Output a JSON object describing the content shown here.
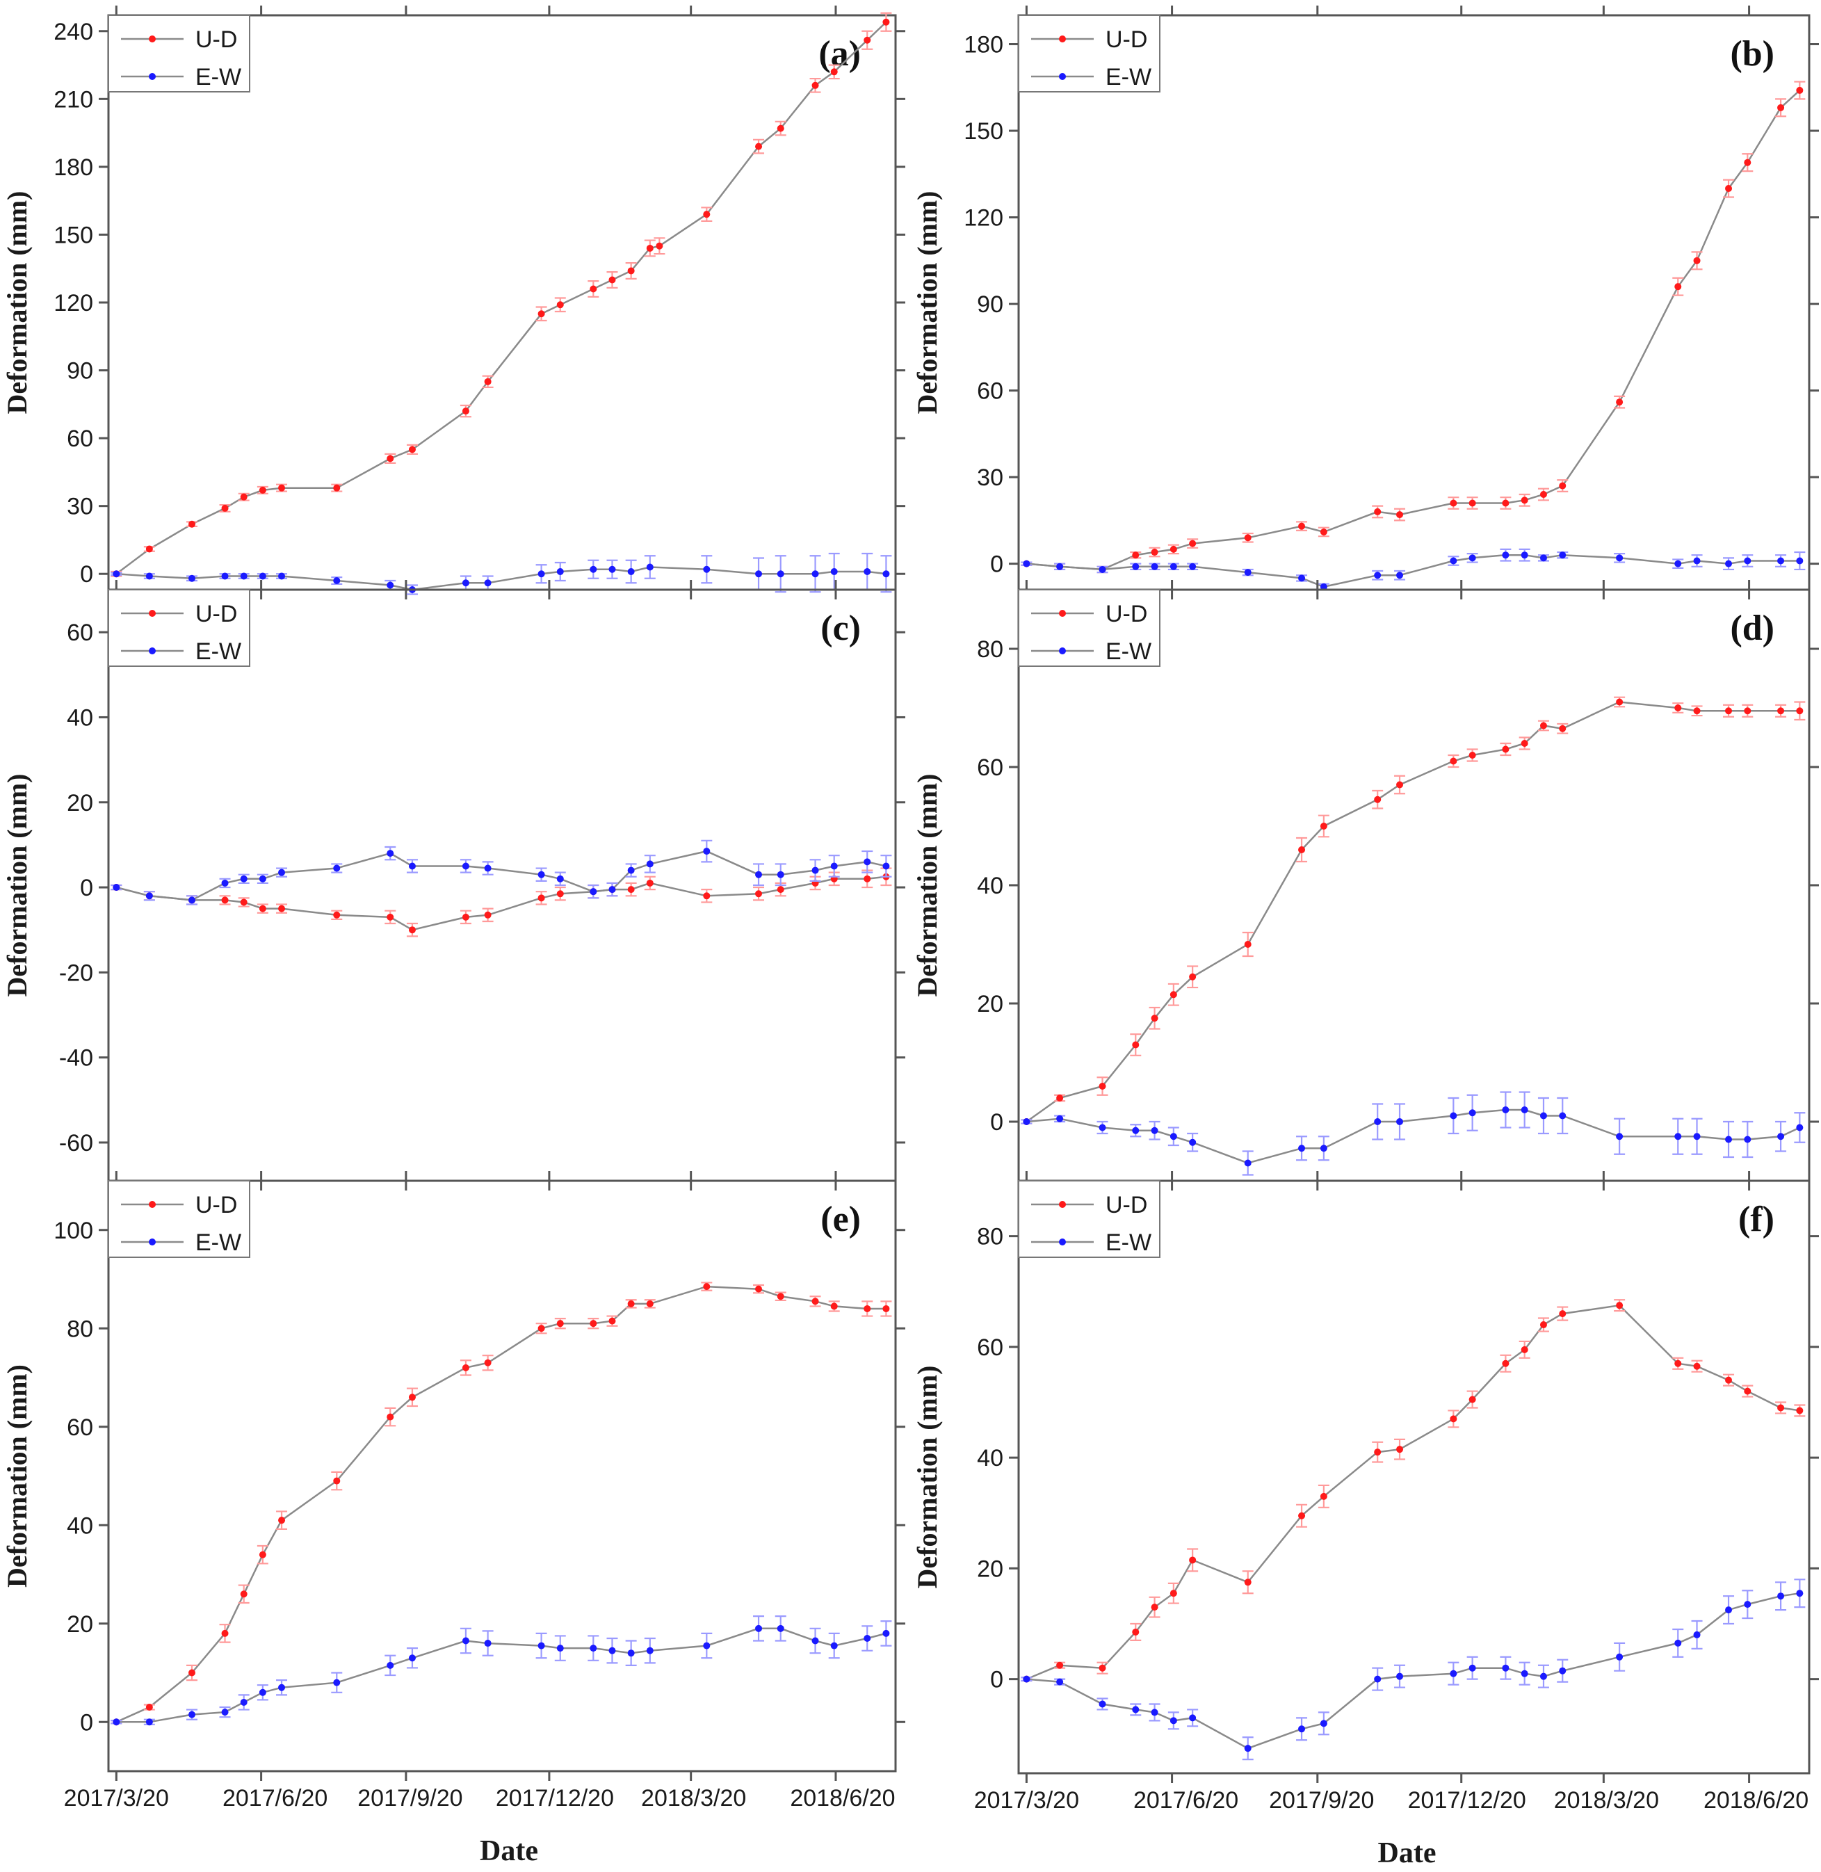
{
  "figure": {
    "x_label": "Date",
    "y_label": "Deformation (mm)",
    "x_tick_labels": [
      "2017/3/20",
      "2017/6/20",
      "2017/9/20",
      "2017/12/20",
      "2018/3/20",
      "2018/6/20"
    ],
    "legend": [
      "U-D",
      "E-W"
    ],
    "colors": {
      "U-D": "#ff1a1a",
      "E-W": "#1a1aff",
      "line": "#8a8a8a",
      "error_U-D": "#ff9a9a",
      "error_E-W": "#9a9aff"
    }
  },
  "chart_data": [
    {
      "panel": "(a)",
      "type": "line",
      "title": "(a)",
      "xlabel": "",
      "ylabel": "Deformation (mm)",
      "ylim": [
        -7,
        247
      ],
      "yticks": [
        0,
        30,
        60,
        90,
        120,
        150,
        180,
        210,
        240
      ],
      "xlim": [
        -5,
        495
      ],
      "xticks": [
        0,
        92,
        184,
        275,
        365,
        457
      ],
      "legend_position": "top-left",
      "series": [
        {
          "name": "U-D",
          "x": [
            0,
            21,
            48,
            69,
            81,
            93,
            105,
            140,
            174,
            188,
            222,
            236,
            270,
            282,
            303,
            315,
            327,
            339,
            345,
            375,
            408,
            422,
            444,
            456,
            477,
            489
          ],
          "y": [
            0,
            11,
            22,
            29,
            34,
            37,
            38,
            38,
            51,
            55,
            72,
            85,
            115,
            119,
            126,
            130,
            134,
            144,
            145,
            159,
            189,
            197,
            216,
            222,
            236,
            244
          ],
          "err": [
            1,
            1,
            1,
            1.5,
            1.5,
            1.5,
            1.5,
            1.5,
            2,
            2,
            2.5,
            2.5,
            3,
            3,
            3.5,
            3.5,
            3.5,
            3.5,
            3.5,
            3,
            3,
            3,
            3,
            3,
            4,
            4
          ]
        },
        {
          "name": "E-W",
          "x": [
            0,
            21,
            48,
            69,
            81,
            93,
            105,
            140,
            174,
            188,
            222,
            236,
            270,
            282,
            303,
            315,
            327,
            339,
            375,
            408,
            422,
            444,
            456,
            477,
            489
          ],
          "y": [
            0,
            -1,
            -2,
            -1,
            -1,
            -1,
            -1,
            -3,
            -5,
            -7,
            -4,
            -4,
            0,
            1,
            2,
            2,
            1,
            3,
            2,
            0,
            0,
            0,
            1,
            1,
            0
          ],
          "err": [
            0.5,
            1,
            1,
            1,
            1,
            1,
            1,
            1.5,
            2,
            2,
            3,
            3,
            4,
            4,
            4,
            4,
            5,
            5,
            6,
            7,
            8,
            8,
            8,
            8,
            8
          ]
        }
      ]
    },
    {
      "panel": "(b)",
      "type": "line",
      "title": "(b)",
      "xlabel": "",
      "ylabel": "Deformation (mm)",
      "ylim": [
        -9,
        190
      ],
      "yticks": [
        0,
        30,
        60,
        90,
        120,
        150,
        180
      ],
      "xlim": [
        -5,
        495
      ],
      "xticks": [
        0,
        92,
        184,
        275,
        365,
        457
      ],
      "legend_position": "top-left",
      "series": [
        {
          "name": "U-D",
          "x": [
            0,
            21,
            48,
            69,
            81,
            93,
            105,
            140,
            174,
            188,
            222,
            236,
            270,
            282,
            303,
            315,
            327,
            339,
            375,
            412,
            424,
            444,
            456,
            477,
            489
          ],
          "y": [
            0,
            -1,
            -2,
            3,
            4,
            5,
            7,
            9,
            13,
            11,
            18,
            17,
            21,
            21,
            21,
            22,
            24,
            27,
            56,
            96,
            105,
            130,
            139,
            158,
            164
          ],
          "err": [
            0.5,
            1,
            1,
            1,
            1.5,
            1.5,
            1.5,
            1.5,
            1.5,
            1.5,
            2,
            2,
            2,
            2,
            2,
            2,
            2,
            2,
            2,
            3,
            3,
            3,
            3,
            3,
            3
          ]
        },
        {
          "name": "E-W",
          "x": [
            0,
            21,
            48,
            69,
            81,
            93,
            105,
            140,
            174,
            188,
            222,
            236,
            270,
            282,
            303,
            315,
            327,
            339,
            375,
            412,
            424,
            444,
            456,
            477,
            489
          ],
          "y": [
            0,
            -1,
            -2,
            -1,
            -1,
            -1,
            -1,
            -3,
            -5,
            -8,
            -4,
            -4,
            1,
            2,
            3,
            3,
            2,
            3,
            2,
            0,
            1,
            0,
            1,
            1,
            1
          ],
          "err": [
            0.5,
            1,
            1,
            1,
            1,
            1,
            1,
            1,
            1,
            1,
            1.5,
            1.5,
            1.5,
            1.5,
            2,
            2,
            1,
            1,
            1.5,
            1.5,
            2,
            2,
            2,
            2,
            3
          ]
        }
      ]
    },
    {
      "panel": "(c)",
      "type": "line",
      "title": "(c)",
      "xlabel": "",
      "ylabel": "Deformation (mm)",
      "ylim": [
        -69,
        70
      ],
      "yticks": [
        -60,
        -40,
        -20,
        0,
        20,
        40,
        60
      ],
      "xlim": [
        -5,
        495
      ],
      "xticks": [
        0,
        92,
        184,
        275,
        365,
        457
      ],
      "legend_position": "top-left",
      "series": [
        {
          "name": "U-D",
          "x": [
            0,
            21,
            48,
            69,
            81,
            93,
            105,
            140,
            174,
            188,
            222,
            236,
            270,
            282,
            303,
            315,
            327,
            339,
            375,
            408,
            422,
            444,
            456,
            477,
            489
          ],
          "y": [
            0,
            -2,
            -3,
            -3,
            -3.5,
            -5,
            -5,
            -6.5,
            -7,
            -10,
            -7,
            -6.5,
            -2.5,
            -1.5,
            -1,
            -0.5,
            -0.5,
            1,
            -2,
            -1.5,
            -0.5,
            1,
            2,
            2,
            2.5
          ],
          "err": [
            0.5,
            1,
            1,
            1,
            1,
            1,
            1,
            1,
            1.5,
            1.5,
            1.5,
            1.5,
            1.5,
            1.5,
            1.5,
            1.5,
            1.5,
            1.5,
            1.5,
            1.5,
            1.5,
            1.5,
            1.5,
            2,
            2
          ]
        },
        {
          "name": "E-W",
          "x": [
            0,
            21,
            48,
            69,
            81,
            93,
            105,
            140,
            174,
            188,
            222,
            236,
            270,
            282,
            303,
            315,
            327,
            339,
            375,
            408,
            422,
            444,
            456,
            477,
            489
          ],
          "y": [
            0,
            -2,
            -3,
            1,
            2,
            2,
            3.5,
            4.5,
            8,
            5,
            5,
            4.5,
            3,
            2,
            -1,
            -0.5,
            4,
            5.5,
            8.5,
            3,
            3,
            4,
            5,
            6,
            5
          ],
          "err": [
            0.5,
            1,
            1,
            1,
            1,
            1,
            1,
            1,
            1.5,
            1.5,
            1.5,
            1.5,
            1.5,
            1.5,
            1.5,
            1.5,
            1.5,
            2,
            2.5,
            2.5,
            2.5,
            2.5,
            2.5,
            2.5,
            2.5
          ]
        }
      ]
    },
    {
      "panel": "(d)",
      "type": "line",
      "title": "(d)",
      "xlabel": "",
      "ylabel": "Deformation (mm)",
      "ylim": [
        -10,
        90
      ],
      "yticks": [
        0,
        20,
        40,
        60,
        80
      ],
      "xlim": [
        -5,
        495
      ],
      "xticks": [
        0,
        92,
        184,
        275,
        365,
        457
      ],
      "legend_position": "top-left",
      "series": [
        {
          "name": "U-D",
          "x": [
            0,
            21,
            48,
            69,
            81,
            93,
            105,
            140,
            174,
            188,
            222,
            236,
            270,
            282,
            303,
            315,
            327,
            339,
            375,
            412,
            424,
            444,
            456,
            477,
            489
          ],
          "y": [
            0,
            4,
            6,
            13,
            17.5,
            21.5,
            24.5,
            30,
            46,
            50,
            54.5,
            57,
            61,
            62,
            63,
            64,
            67,
            66.5,
            71,
            70,
            69.5,
            69.5,
            69.5,
            69.5,
            69.5
          ],
          "err": [
            0.3,
            0.5,
            1.5,
            1.8,
            1.8,
            1.8,
            1.8,
            2,
            2,
            1.8,
            1.5,
            1.5,
            1,
            1,
            1,
            1,
            0.8,
            0.8,
            0.8,
            0.8,
            0.8,
            1,
            1,
            1,
            1.5
          ]
        },
        {
          "name": "E-W",
          "x": [
            0,
            21,
            48,
            69,
            81,
            93,
            105,
            140,
            174,
            188,
            222,
            236,
            270,
            282,
            303,
            315,
            327,
            339,
            375,
            412,
            424,
            444,
            456,
            477,
            489
          ],
          "y": [
            0,
            0.5,
            -1,
            -1.5,
            -1.5,
            -2.5,
            -3.5,
            -7,
            -4.5,
            -4.5,
            0,
            0,
            1,
            1.5,
            2,
            2,
            1,
            1,
            -2.5,
            -2.5,
            -2.5,
            -3,
            -3,
            -2.5,
            -1
          ],
          "err": [
            0.3,
            0.5,
            1,
            1,
            1.5,
            1.5,
            1.5,
            2,
            2,
            2,
            3,
            3,
            3,
            3,
            3,
            3,
            3,
            3,
            3,
            3,
            3,
            3,
            3,
            2.5,
            2.5
          ]
        }
      ]
    },
    {
      "panel": "(e)",
      "type": "line",
      "title": "(e)",
      "xlabel": "Date",
      "ylabel": "Deformation (mm)",
      "ylim": [
        -10,
        110
      ],
      "yticks": [
        0,
        20,
        40,
        60,
        80,
        100
      ],
      "xlim": [
        -5,
        495
      ],
      "xticks": [
        0,
        92,
        184,
        275,
        365,
        457
      ],
      "legend_position": "top-left",
      "series": [
        {
          "name": "U-D",
          "x": [
            0,
            21,
            48,
            69,
            81,
            93,
            105,
            140,
            174,
            188,
            222,
            236,
            270,
            282,
            303,
            315,
            327,
            339,
            375,
            408,
            422,
            444,
            456,
            477,
            489
          ],
          "y": [
            0,
            3,
            10,
            18,
            26,
            34,
            41,
            49,
            62,
            66,
            72,
            73,
            80,
            81,
            81,
            81.5,
            85,
            85,
            88.5,
            88,
            86.5,
            85.5,
            84.5,
            84,
            84
          ],
          "err": [
            0.3,
            0.5,
            1.5,
            1.8,
            1.8,
            1.8,
            1.8,
            1.8,
            1.8,
            1.8,
            1.5,
            1.5,
            1,
            1,
            1,
            1,
            0.8,
            0.8,
            0.8,
            0.8,
            0.8,
            1,
            1,
            1.5,
            1.5
          ]
        },
        {
          "name": "E-W",
          "x": [
            0,
            21,
            48,
            69,
            81,
            93,
            105,
            140,
            174,
            188,
            222,
            236,
            270,
            282,
            303,
            315,
            327,
            339,
            375,
            408,
            422,
            444,
            456,
            477,
            489
          ],
          "y": [
            0,
            0,
            1.5,
            2,
            4,
            6,
            7,
            8,
            11.5,
            13,
            16.5,
            16,
            15.5,
            15,
            15,
            14.5,
            14,
            14.5,
            15.5,
            19,
            19,
            16.5,
            15.5,
            17,
            18
          ],
          "err": [
            0.3,
            0.5,
            1,
            1,
            1.5,
            1.5,
            1.5,
            2,
            2,
            2,
            2.5,
            2.5,
            2.5,
            2.5,
            2.5,
            2.5,
            2.5,
            2.5,
            2.5,
            2.5,
            2.5,
            2.5,
            2.5,
            2.5,
            2.5
          ]
        }
      ]
    },
    {
      "panel": "(f)",
      "type": "line",
      "title": "(f)",
      "xlabel": "Date",
      "ylabel": "Deformation (mm)",
      "ylim": [
        -17,
        90
      ],
      "yticks": [
        0,
        20,
        40,
        60,
        80
      ],
      "xlim": [
        -5,
        495
      ],
      "xticks": [
        0,
        92,
        184,
        275,
        365,
        457
      ],
      "legend_position": "top-left",
      "series": [
        {
          "name": "U-D",
          "x": [
            0,
            21,
            48,
            69,
            81,
            93,
            105,
            140,
            174,
            188,
            222,
            236,
            270,
            282,
            303,
            315,
            327,
            339,
            375,
            412,
            424,
            444,
            456,
            477,
            489
          ],
          "y": [
            0,
            2.5,
            2,
            8.5,
            13,
            15.5,
            21.5,
            17.5,
            29.5,
            33,
            41,
            41.5,
            47,
            50.5,
            57,
            59.5,
            64,
            66,
            67.5,
            57,
            56.5,
            54,
            52,
            49,
            48.5
          ],
          "err": [
            0.3,
            0.5,
            1,
            1.5,
            1.8,
            1.8,
            2,
            2,
            2,
            2,
            1.8,
            1.8,
            1.5,
            1.5,
            1.5,
            1.5,
            1.2,
            1.2,
            1,
            1,
            1,
            1,
            1,
            1,
            1
          ]
        },
        {
          "name": "E-W",
          "x": [
            0,
            21,
            48,
            69,
            81,
            93,
            105,
            140,
            174,
            188,
            222,
            236,
            270,
            282,
            303,
            315,
            327,
            339,
            375,
            412,
            424,
            444,
            456,
            477,
            489
          ],
          "y": [
            0,
            -0.5,
            -4.5,
            -5.5,
            -6,
            -7.5,
            -7,
            -12.5,
            -9,
            -8,
            0,
            0.5,
            1,
            2,
            2,
            1,
            0.5,
            1.5,
            4,
            6.5,
            8,
            12.5,
            13.5,
            15,
            15.5
          ],
          "err": [
            0.3,
            0.5,
            1,
            1,
            1.5,
            1.5,
            1.5,
            2,
            2,
            2,
            2,
            2,
            2,
            2,
            2,
            2,
            2,
            2,
            2.5,
            2.5,
            2.5,
            2.5,
            2.5,
            2.5,
            2.5
          ]
        }
      ]
    }
  ]
}
